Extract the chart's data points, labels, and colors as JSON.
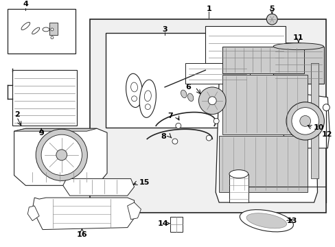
{
  "bg_color": "#f0f0f0",
  "white": "#ffffff",
  "light_gray": "#cccccc",
  "medium_gray": "#888888",
  "dark_gray": "#444444",
  "black": "#000000",
  "line_color": "#222222",
  "fig_w": 4.89,
  "fig_h": 3.6,
  "dpi": 100
}
